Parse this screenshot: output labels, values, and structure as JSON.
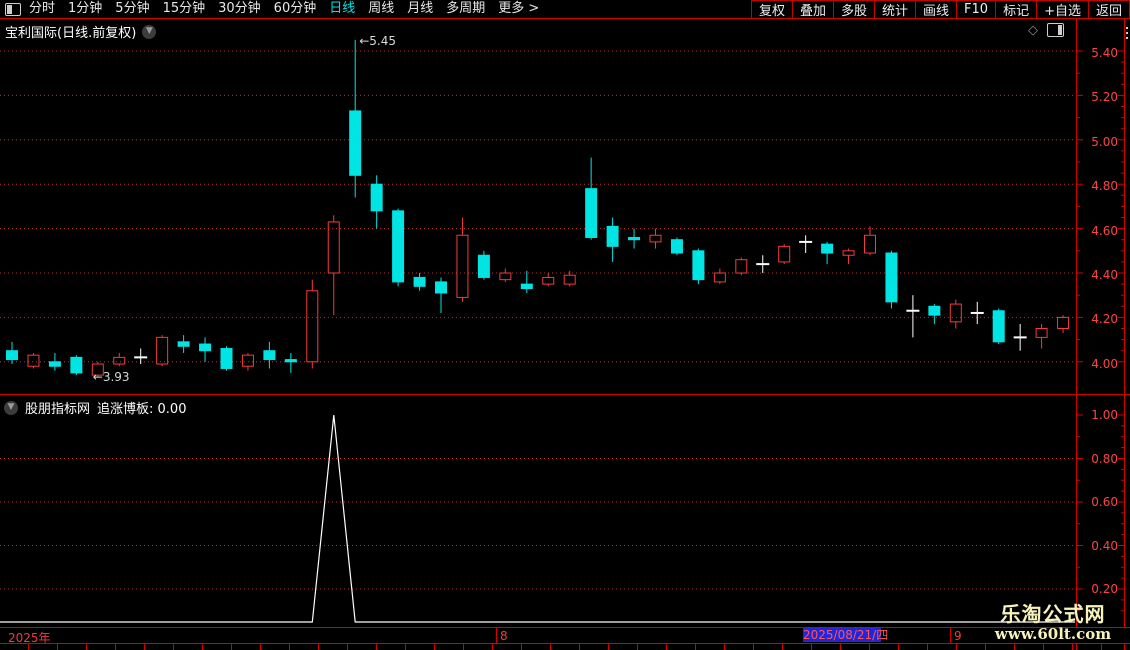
{
  "topbar": {
    "periods": [
      {
        "label": "分时",
        "active": false
      },
      {
        "label": "1分钟",
        "active": false
      },
      {
        "label": "5分钟",
        "active": false
      },
      {
        "label": "15分钟",
        "active": false
      },
      {
        "label": "30分钟",
        "active": false
      },
      {
        "label": "60分钟",
        "active": false
      },
      {
        "label": "日线",
        "active": true
      },
      {
        "label": "周线",
        "active": false
      },
      {
        "label": "月线",
        "active": false
      },
      {
        "label": "多周期",
        "active": false
      },
      {
        "label": "更多 >",
        "active": false
      }
    ],
    "actions": [
      "复权",
      "叠加",
      "多股",
      "统计",
      "画线",
      "F10",
      "标记",
      "+自选",
      "返回"
    ]
  },
  "main_panel": {
    "title": "宝利国际(日线.前复权)",
    "high_annotation": "←5.45",
    "low_annotation": "←3.93",
    "axis_labels": [
      "5.40",
      "5.20",
      "5.00",
      "4.80",
      "4.60",
      "4.40",
      "4.20",
      "4.00"
    ]
  },
  "sub_panel": {
    "source": "股朋指标网",
    "indicator_label": "追涨博板: 0.00",
    "axis_labels": [
      "1.00",
      "0.80",
      "0.60",
      "0.40",
      "0.20"
    ]
  },
  "timeline": {
    "year": "2025年",
    "month_aug": "8",
    "cursor_date": "2025/08/21/四",
    "month_sep": "9"
  },
  "watermark": {
    "line1": "乐淘公式网",
    "line2": "www.60lt.com"
  },
  "colors": {
    "up": "#f53b3b",
    "down": "#00e4e4",
    "flat": "#ffffff",
    "grid": "#c62a2a",
    "axis_text": "#fb4545",
    "frame": "#d40000",
    "timeline_text": "#f03b3b",
    "cursor_bg": "#2326d8",
    "cursor_text": "#ff5555",
    "watermark": "#f7f2bb",
    "menu_active": "#00e4e4",
    "menu_text": "#e8e8e8"
  },
  "chart_data": [
    {
      "type": "candlestick",
      "title": "宝利国际(日线.前复权)",
      "ylim": [
        3.93,
        5.45
      ],
      "grid_step": 0.2,
      "y_gridlines": [
        5.4,
        5.2,
        5.0,
        4.8,
        4.6,
        4.4,
        4.2,
        4.0
      ],
      "high_label": {
        "value": 5.45,
        "index": 16
      },
      "low_label": {
        "value": 3.93,
        "index": 4
      },
      "candles": [
        {
          "o": 4.05,
          "h": 4.09,
          "l": 3.99,
          "c": 4.01
        },
        {
          "o": 3.98,
          "h": 4.04,
          "l": 3.97,
          "c": 4.03
        },
        {
          "o": 4.0,
          "h": 4.04,
          "l": 3.96,
          "c": 3.98
        },
        {
          "o": 4.02,
          "h": 4.03,
          "l": 3.94,
          "c": 3.95
        },
        {
          "o": 3.94,
          "h": 4.0,
          "l": 3.93,
          "c": 3.99
        },
        {
          "o": 3.99,
          "h": 4.04,
          "l": 3.98,
          "c": 4.02
        },
        {
          "o": 4.02,
          "h": 4.06,
          "l": 3.99,
          "c": 4.02,
          "flat": true
        },
        {
          "o": 3.99,
          "h": 4.12,
          "l": 3.98,
          "c": 4.11
        },
        {
          "o": 4.09,
          "h": 4.12,
          "l": 4.04,
          "c": 4.07
        },
        {
          "o": 4.08,
          "h": 4.11,
          "l": 4.0,
          "c": 4.05
        },
        {
          "o": 4.06,
          "h": 4.07,
          "l": 3.96,
          "c": 3.97
        },
        {
          "o": 3.98,
          "h": 4.04,
          "l": 3.96,
          "c": 4.03
        },
        {
          "o": 4.05,
          "h": 4.09,
          "l": 3.97,
          "c": 4.01
        },
        {
          "o": 4.01,
          "h": 4.04,
          "l": 3.95,
          "c": 4.0
        },
        {
          "o": 4.0,
          "h": 4.37,
          "l": 3.97,
          "c": 4.32
        },
        {
          "o": 4.4,
          "h": 4.66,
          "l": 4.21,
          "c": 4.63
        },
        {
          "o": 5.13,
          "h": 5.45,
          "l": 4.74,
          "c": 4.84
        },
        {
          "o": 4.8,
          "h": 4.84,
          "l": 4.6,
          "c": 4.68
        },
        {
          "o": 4.68,
          "h": 4.69,
          "l": 4.34,
          "c": 4.36
        },
        {
          "o": 4.38,
          "h": 4.4,
          "l": 4.32,
          "c": 4.34
        },
        {
          "o": 4.36,
          "h": 4.38,
          "l": 4.22,
          "c": 4.31
        },
        {
          "o": 4.29,
          "h": 4.65,
          "l": 4.27,
          "c": 4.57
        },
        {
          "o": 4.48,
          "h": 4.5,
          "l": 4.37,
          "c": 4.38
        },
        {
          "o": 4.37,
          "h": 4.42,
          "l": 4.36,
          "c": 4.4
        },
        {
          "o": 4.35,
          "h": 4.41,
          "l": 4.31,
          "c": 4.33
        },
        {
          "o": 4.35,
          "h": 4.4,
          "l": 4.34,
          "c": 4.38
        },
        {
          "o": 4.35,
          "h": 4.41,
          "l": 4.34,
          "c": 4.39
        },
        {
          "o": 4.78,
          "h": 4.92,
          "l": 4.55,
          "c": 4.56
        },
        {
          "o": 4.61,
          "h": 4.65,
          "l": 4.45,
          "c": 4.52
        },
        {
          "o": 4.56,
          "h": 4.6,
          "l": 4.51,
          "c": 4.55
        },
        {
          "o": 4.54,
          "h": 4.6,
          "l": 4.51,
          "c": 4.57
        },
        {
          "o": 4.55,
          "h": 4.56,
          "l": 4.48,
          "c": 4.49
        },
        {
          "o": 4.5,
          "h": 4.51,
          "l": 4.35,
          "c": 4.37
        },
        {
          "o": 4.36,
          "h": 4.42,
          "l": 4.35,
          "c": 4.4
        },
        {
          "o": 4.4,
          "h": 4.47,
          "l": 4.39,
          "c": 4.46
        },
        {
          "o": 4.44,
          "h": 4.48,
          "l": 4.4,
          "c": 4.44,
          "flat": true
        },
        {
          "o": 4.45,
          "h": 4.53,
          "l": 4.44,
          "c": 4.52
        },
        {
          "o": 4.54,
          "h": 4.57,
          "l": 4.49,
          "c": 4.54,
          "flat": true
        },
        {
          "o": 4.53,
          "h": 4.54,
          "l": 4.44,
          "c": 4.49
        },
        {
          "o": 4.48,
          "h": 4.51,
          "l": 4.44,
          "c": 4.5
        },
        {
          "o": 4.49,
          "h": 4.61,
          "l": 4.48,
          "c": 4.57
        },
        {
          "o": 4.49,
          "h": 4.5,
          "l": 4.24,
          "c": 4.27
        },
        {
          "o": 4.23,
          "h": 4.3,
          "l": 4.11,
          "c": 4.23,
          "flat": true
        },
        {
          "o": 4.25,
          "h": 4.26,
          "l": 4.17,
          "c": 4.21
        },
        {
          "o": 4.18,
          "h": 4.28,
          "l": 4.15,
          "c": 4.26
        },
        {
          "o": 4.22,
          "h": 4.27,
          "l": 4.17,
          "c": 4.22,
          "flat": true
        },
        {
          "o": 4.23,
          "h": 4.24,
          "l": 4.08,
          "c": 4.09
        },
        {
          "o": 4.11,
          "h": 4.17,
          "l": 4.05,
          "c": 4.11,
          "flat": true
        },
        {
          "o": 4.11,
          "h": 4.17,
          "l": 4.06,
          "c": 4.15
        },
        {
          "o": 4.15,
          "h": 4.21,
          "l": 4.13,
          "c": 4.2
        }
      ]
    },
    {
      "type": "line",
      "name": "追涨博板",
      "current_value": "0.00",
      "ylim": [
        0,
        1.0
      ],
      "y_axis": [
        1.0,
        0.8,
        0.6,
        0.4,
        0.2
      ],
      "y_gridlines": [
        0.8,
        0.6,
        0.4,
        0.2
      ],
      "color": "#ffffff",
      "values": [
        0,
        0,
        0,
        0,
        0,
        0,
        0,
        0,
        0,
        0,
        0,
        0,
        0,
        0,
        0,
        1,
        0,
        0,
        0,
        0,
        0,
        0,
        0,
        0,
        0,
        0,
        0,
        0,
        0,
        0,
        0,
        0,
        0,
        0,
        0,
        0,
        0,
        0,
        0,
        0,
        0,
        0,
        0,
        0,
        0,
        0,
        0,
        0,
        0,
        0
      ]
    }
  ]
}
